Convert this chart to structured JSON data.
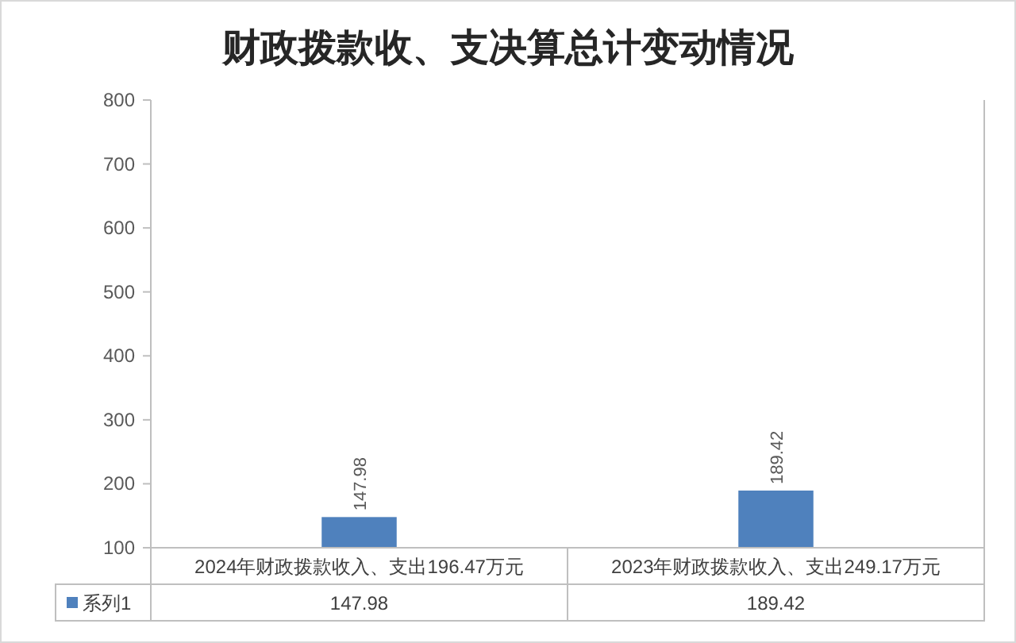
{
  "chart_data": {
    "type": "bar",
    "title": "财政拨款收、支决算总计变动情况",
    "categories": [
      "2024年财政拨款收入、支出196.47万元",
      "2023年财政拨款收入、支出249.17万元"
    ],
    "series": [
      {
        "name": "系列1",
        "color": "#4f81bd",
        "values": [
          147.98,
          189.42
        ],
        "value_labels": [
          "147.98",
          "189.42"
        ]
      }
    ],
    "ylim": [
      100,
      800
    ],
    "yticks": [
      100,
      200,
      300,
      400,
      500,
      600,
      700,
      800
    ],
    "annotations": [
      "147.98",
      "189.42"
    ],
    "grid": false,
    "data_labels": true,
    "legend": "bottom"
  }
}
